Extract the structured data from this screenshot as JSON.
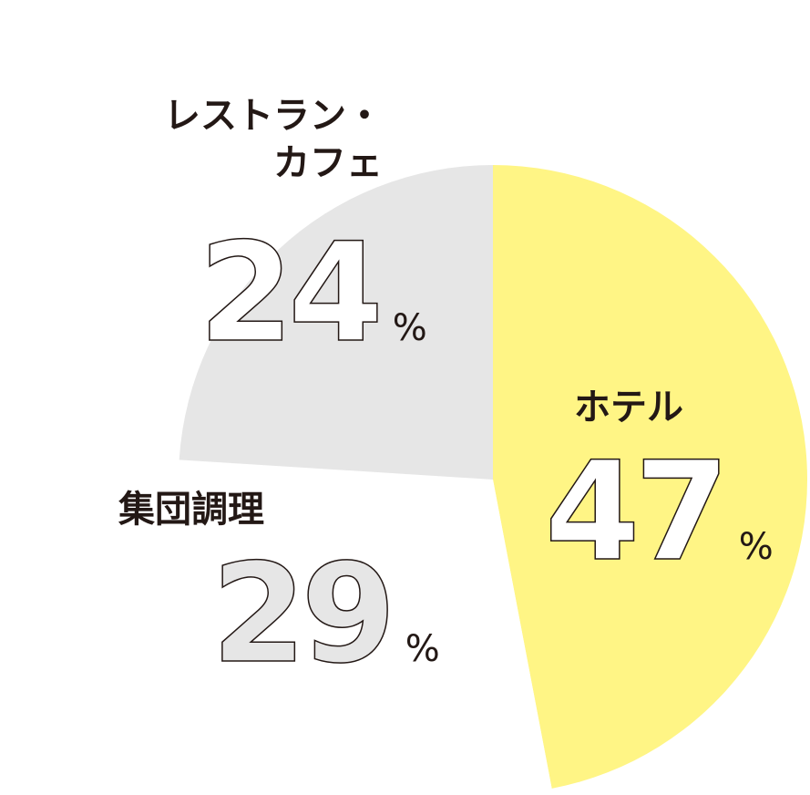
{
  "chart_data": {
    "type": "pie",
    "categories": [
      "ホテル",
      "集団調理",
      "レストラン・カフェ"
    ],
    "values": [
      47,
      29,
      24
    ],
    "value_labels": [
      "47%",
      "29%",
      "24%"
    ],
    "colors": [
      "#fff585",
      "#ffffff",
      "#e6e6e6"
    ]
  }
}
